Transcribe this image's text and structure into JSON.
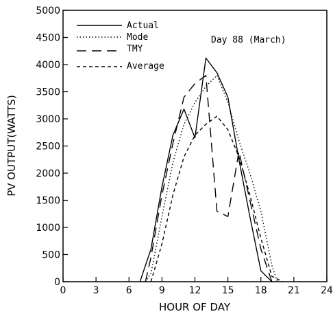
{
  "chart_data": {
    "type": "line",
    "title": "",
    "annotation": "Day 88 (March)",
    "xlabel": "HOUR OF DAY",
    "ylabel": "PV OUTPUT(WATTS)",
    "xlim": [
      0,
      24
    ],
    "ylim": [
      0,
      5000
    ],
    "xticks": [
      0,
      3,
      6,
      9,
      12,
      15,
      18,
      21,
      24
    ],
    "yticks": [
      0,
      500,
      1000,
      1500,
      2000,
      2500,
      3000,
      3500,
      4000,
      4500,
      5000
    ],
    "grid": false,
    "legend_position": "top-left",
    "series": [
      {
        "name": "Actual",
        "dash": "solid",
        "x": [
          7,
          8,
          9,
          10,
          11,
          12,
          13,
          14,
          15,
          16,
          17,
          18,
          19
        ],
        "y": [
          0,
          600,
          1750,
          2700,
          3180,
          2650,
          4120,
          3850,
          3400,
          2250,
          1200,
          200,
          0
        ]
      },
      {
        "name": "Mode",
        "dash": "dotted",
        "x": [
          7.5,
          8,
          9,
          10,
          11,
          12,
          13,
          14,
          15,
          16,
          17,
          18,
          19,
          19.5
        ],
        "y": [
          0,
          150,
          1200,
          2200,
          2900,
          3300,
          3600,
          3800,
          3300,
          2600,
          2000,
          1300,
          300,
          0
        ]
      },
      {
        "name": "TMY",
        "dash": "longdash",
        "x": [
          7.5,
          8,
          9,
          10,
          11,
          12,
          13,
          14,
          15,
          16,
          17,
          18,
          19,
          19.5
        ],
        "y": [
          0,
          450,
          1600,
          2550,
          3400,
          3650,
          3800,
          1300,
          1200,
          2400,
          1500,
          600,
          0,
          0
        ]
      },
      {
        "name": "Average",
        "dash": "shortdash",
        "x": [
          8,
          9,
          10,
          11,
          12,
          13,
          14,
          15,
          16,
          17,
          18,
          19,
          20
        ],
        "y": [
          0,
          700,
          1600,
          2300,
          2700,
          2900,
          3050,
          2800,
          2300,
          1600,
          800,
          100,
          0
        ]
      }
    ]
  }
}
